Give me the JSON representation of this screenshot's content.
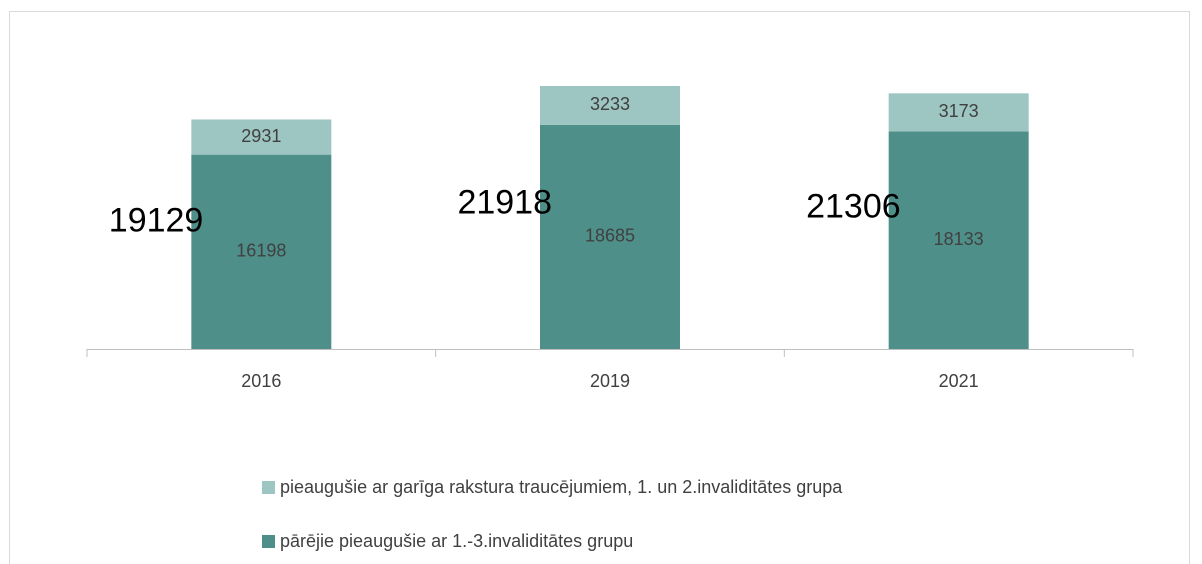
{
  "chart_data": {
    "type": "stacked_bar",
    "categories": [
      "2016",
      "2019",
      "2021"
    ],
    "series": [
      {
        "name": "pārējie pieaugušie ar 1.-3.invaliditātes grupu",
        "color": "#4f8f89",
        "values": [
          16198,
          18685,
          18133
        ]
      },
      {
        "name": "pieaugušie ar garīga rakstura traucējumiem, 1. un 2.invaliditātes grupa",
        "color": "#9dc5c1",
        "values": [
          2931,
          3233,
          3173
        ]
      }
    ],
    "totals": [
      19129,
      21918,
      21306
    ],
    "legend": "bottom"
  }
}
